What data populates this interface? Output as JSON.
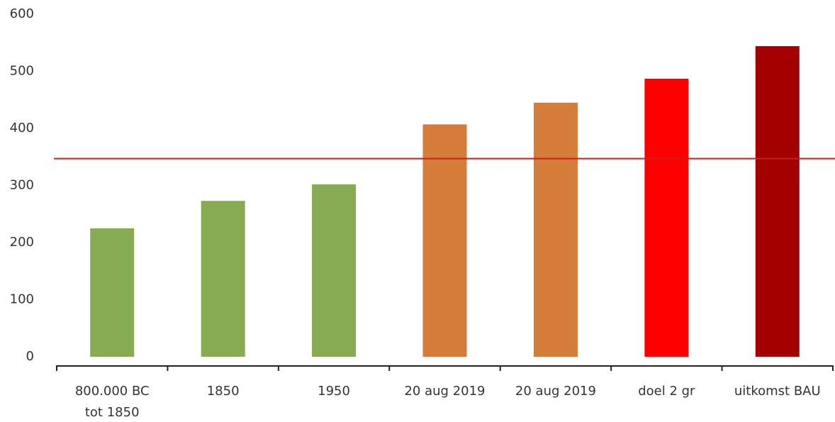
{
  "chart_data": {
    "type": "bar",
    "categories": [
      "800.000 BC\ntot 1850",
      "1850",
      "1950",
      "20 aug 2019",
      "20 aug 2019",
      "doel 2 gr",
      "uitkomst BAU"
    ],
    "values": [
      225,
      273,
      302,
      407,
      445,
      487,
      544
    ],
    "colors": [
      "#86ab52",
      "#86ab52",
      "#86ab52",
      "#d47c3a",
      "#d47c3a",
      "#ff0000",
      "#a50000"
    ],
    "reference_line": {
      "value": 347,
      "color": "#cc1f1a"
    },
    "ylim": [
      0,
      600
    ],
    "yticks": [
      0,
      100,
      200,
      300,
      400,
      500,
      600
    ],
    "grid": false
  }
}
